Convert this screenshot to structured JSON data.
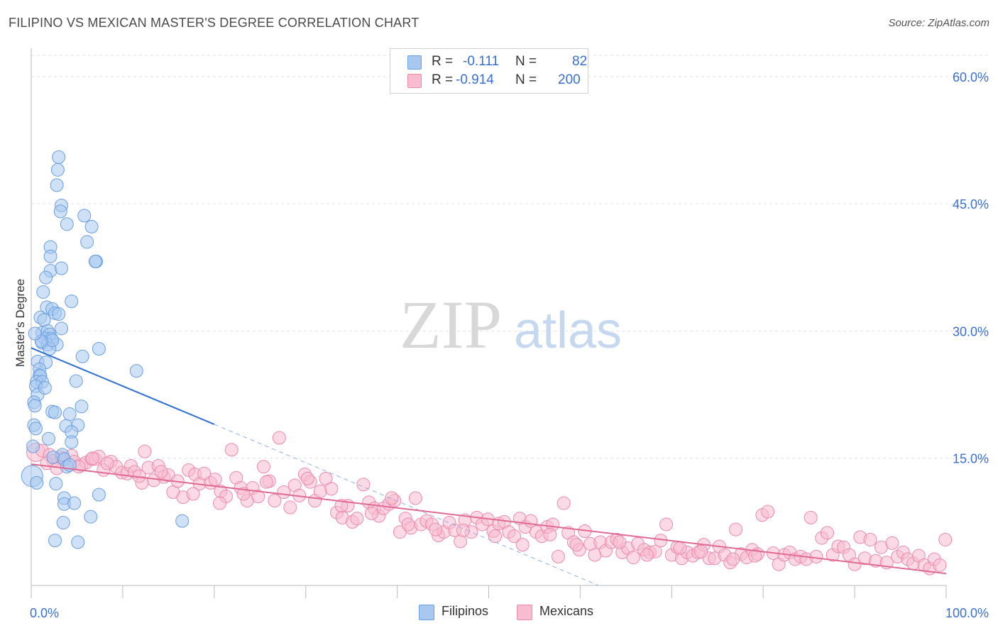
{
  "title": "FILIPINO VS MEXICAN MASTER'S DEGREE CORRELATION CHART",
  "source": "Source: ZipAtlas.com",
  "watermark": {
    "zip": "ZIP",
    "atlas": "atlas"
  },
  "legend": {
    "rows": [
      {
        "r_label": "R =",
        "r_value": "-0.111",
        "n_label": "N =",
        "n_value": "82",
        "color": "#a8c8f0",
        "stroke": "#6a9ee0"
      },
      {
        "r_label": "R =",
        "r_value": "-0.914",
        "n_label": "N =",
        "n_value": "200",
        "color": "#f8bcd0",
        "stroke": "#ec8aaa"
      }
    ]
  },
  "bottom_legend": [
    {
      "label": "Filipinos",
      "color": "#a8c8f0",
      "stroke": "#6a9ee0"
    },
    {
      "label": "Mexicans",
      "color": "#f8bcd0",
      "stroke": "#ec8aaa"
    }
  ],
  "chart_data": {
    "type": "scatter",
    "title": "FILIPINO VS MEXICAN MASTER'S DEGREE CORRELATION CHART",
    "xlabel": "",
    "ylabel": "Master's Degree",
    "xlim": [
      0,
      100
    ],
    "ylim": [
      0,
      63
    ],
    "x_tick_labels": [
      {
        "value": 0,
        "label": "0.0%"
      },
      {
        "value": 100,
        "label": "100.0%"
      }
    ],
    "y_tick_labels": [
      {
        "value": 15,
        "label": "15.0%"
      },
      {
        "value": 30,
        "label": "30.0%"
      },
      {
        "value": 45,
        "label": "45.0%"
      },
      {
        "value": 60,
        "label": "60.0%"
      }
    ],
    "grid": "horizontal dashed",
    "legend_position": "top-center",
    "series": [
      {
        "name": "Filipinos",
        "color": "#a8c8f0",
        "stroke": "#6a9ee0",
        "trend": {
          "x0": 0,
          "y0": 28.0,
          "x1": 20,
          "y1": 19.0,
          "dash_to_x": 62,
          "dash_to_y": 0
        },
        "trend_color": "#2f6fd0",
        "points": [
          [
            3.0,
            50.5
          ],
          [
            2.9,
            49.0
          ],
          [
            2.8,
            47.2
          ],
          [
            3.3,
            44.8
          ],
          [
            3.2,
            44.1
          ],
          [
            5.8,
            43.6
          ],
          [
            3.9,
            42.6
          ],
          [
            6.6,
            42.3
          ],
          [
            6.1,
            40.5
          ],
          [
            2.1,
            39.9
          ],
          [
            2.1,
            38.8
          ],
          [
            7.1,
            38.2
          ],
          [
            7.0,
            38.2
          ],
          [
            2.1,
            37.1
          ],
          [
            3.3,
            37.4
          ],
          [
            1.6,
            36.3
          ],
          [
            1.3,
            34.6
          ],
          [
            4.4,
            33.5
          ],
          [
            1.7,
            32.8
          ],
          [
            2.3,
            32.6
          ],
          [
            2.6,
            32.1
          ],
          [
            3.0,
            32.0
          ],
          [
            1.0,
            31.6
          ],
          [
            1.4,
            31.3
          ],
          [
            3.3,
            30.3
          ],
          [
            1.2,
            29.8
          ],
          [
            1.8,
            30.0
          ],
          [
            2.0,
            29.6
          ],
          [
            1.5,
            29.1
          ],
          [
            2.2,
            29.1
          ],
          [
            1.2,
            28.6
          ],
          [
            1.8,
            28.4
          ],
          [
            2.8,
            28.4
          ],
          [
            7.4,
            27.9
          ],
          [
            2.0,
            27.9
          ],
          [
            5.6,
            27.0
          ],
          [
            0.7,
            26.4
          ],
          [
            1.6,
            26.3
          ],
          [
            0.9,
            25.5
          ],
          [
            11.5,
            25.3
          ],
          [
            0.9,
            24.8
          ],
          [
            1.0,
            24.7
          ],
          [
            0.6,
            24.0
          ],
          [
            1.2,
            24.0
          ],
          [
            4.9,
            24.1
          ],
          [
            0.5,
            23.5
          ],
          [
            0.7,
            22.5
          ],
          [
            0.3,
            21.6
          ],
          [
            0.4,
            21.2
          ],
          [
            5.5,
            21.1
          ],
          [
            2.3,
            20.5
          ],
          [
            2.6,
            20.4
          ],
          [
            4.2,
            20.2
          ],
          [
            0.3,
            18.9
          ],
          [
            3.8,
            18.8
          ],
          [
            5.1,
            18.9
          ],
          [
            0.5,
            18.5
          ],
          [
            4.4,
            18.1
          ],
          [
            1.9,
            17.3
          ],
          [
            0.2,
            16.4
          ],
          [
            4.4,
            16.9
          ],
          [
            3.4,
            15.4
          ],
          [
            2.4,
            15.1
          ],
          [
            3.6,
            14.9
          ],
          [
            3.9,
            14.0
          ],
          [
            0.1,
            12.9
          ],
          [
            2.7,
            12.0
          ],
          [
            7.4,
            10.7
          ],
          [
            3.6,
            10.3
          ],
          [
            3.6,
            9.6
          ],
          [
            4.7,
            9.7
          ],
          [
            6.5,
            8.1
          ],
          [
            3.5,
            7.4
          ],
          [
            16.5,
            7.6
          ],
          [
            2.6,
            5.3
          ],
          [
            5.1,
            5.1
          ],
          [
            0.6,
            12.1
          ],
          [
            2.3,
            28.9
          ],
          [
            1.1,
            28.8
          ],
          [
            0.4,
            29.7
          ],
          [
            1.5,
            23.3
          ],
          [
            4.2,
            14.2
          ]
        ]
      },
      {
        "name": "Mexicans",
        "color": "#f8bcd0",
        "stroke": "#ec8aaa",
        "trend": {
          "x0": 0,
          "y0": 14.3,
          "x1": 100,
          "y1": 1.4
        },
        "trend_color": "#e06a94",
        "points": [
          [
            0.5,
            15.7
          ],
          [
            1.2,
            15.9
          ],
          [
            2.0,
            15.4
          ],
          [
            2.4,
            14.7
          ],
          [
            3.3,
            15.1
          ],
          [
            3.5,
            14.8
          ],
          [
            4.4,
            15.3
          ],
          [
            4.7,
            14.6
          ],
          [
            5.5,
            14.2
          ],
          [
            6.0,
            14.5
          ],
          [
            6.6,
            14.9
          ],
          [
            7.0,
            14.9
          ],
          [
            7.4,
            15.2
          ],
          [
            7.9,
            13.6
          ],
          [
            8.7,
            14.6
          ],
          [
            9.3,
            14.0
          ],
          [
            9.9,
            13.3
          ],
          [
            10.5,
            13.2
          ],
          [
            10.9,
            14.1
          ],
          [
            11.3,
            13.4
          ],
          [
            12.1,
            12.1
          ],
          [
            12.4,
            15.8
          ],
          [
            12.8,
            13.9
          ],
          [
            13.4,
            12.4
          ],
          [
            13.9,
            14.1
          ],
          [
            14.5,
            12.8
          ],
          [
            15.0,
            13.0
          ],
          [
            15.5,
            11.0
          ],
          [
            16.0,
            12.3
          ],
          [
            16.6,
            10.4
          ],
          [
            17.2,
            13.6
          ],
          [
            17.9,
            13.1
          ],
          [
            18.4,
            12.0
          ],
          [
            18.9,
            13.2
          ],
          [
            19.6,
            12.1
          ],
          [
            20.1,
            12.5
          ],
          [
            20.7,
            11.1
          ],
          [
            21.3,
            10.5
          ],
          [
            21.9,
            16.0
          ],
          [
            22.4,
            12.7
          ],
          [
            22.9,
            11.5
          ],
          [
            23.6,
            10.0
          ],
          [
            24.2,
            11.5
          ],
          [
            24.8,
            10.5
          ],
          [
            25.4,
            14.0
          ],
          [
            26.0,
            12.3
          ],
          [
            26.6,
            10.0
          ],
          [
            27.1,
            17.4
          ],
          [
            27.6,
            11.0
          ],
          [
            28.3,
            9.2
          ],
          [
            28.8,
            11.8
          ],
          [
            29.3,
            10.6
          ],
          [
            29.9,
            13.1
          ],
          [
            30.5,
            12.2
          ],
          [
            31.0,
            10.0
          ],
          [
            31.6,
            11.1
          ],
          [
            32.2,
            12.6
          ],
          [
            32.8,
            11.4
          ],
          [
            33.4,
            8.6
          ],
          [
            34.0,
            8.0
          ],
          [
            34.6,
            9.4
          ],
          [
            35.1,
            7.5
          ],
          [
            35.6,
            7.9
          ],
          [
            36.3,
            11.9
          ],
          [
            36.9,
            9.8
          ],
          [
            37.5,
            9.1
          ],
          [
            38.0,
            8.2
          ],
          [
            38.5,
            9.1
          ],
          [
            39.1,
            9.6
          ],
          [
            39.7,
            10.0
          ],
          [
            40.3,
            6.3
          ],
          [
            40.9,
            7.9
          ],
          [
            41.5,
            6.8
          ],
          [
            42.0,
            10.3
          ],
          [
            42.6,
            7.2
          ],
          [
            43.2,
            7.6
          ],
          [
            43.8,
            7.2
          ],
          [
            44.5,
            5.9
          ],
          [
            45.1,
            6.3
          ],
          [
            45.7,
            7.4
          ],
          [
            46.3,
            6.5
          ],
          [
            46.9,
            5.2
          ],
          [
            47.4,
            7.7
          ],
          [
            48.1,
            6.3
          ],
          [
            48.7,
            8.0
          ],
          [
            49.3,
            7.2
          ],
          [
            49.9,
            7.8
          ],
          [
            50.5,
            6.4
          ],
          [
            51.1,
            7.3
          ],
          [
            51.7,
            7.5
          ],
          [
            52.2,
            6.3
          ],
          [
            52.8,
            5.8
          ],
          [
            53.4,
            7.9
          ],
          [
            54.0,
            6.9
          ],
          [
            54.6,
            7.6
          ],
          [
            55.2,
            6.3
          ],
          [
            55.8,
            5.8
          ],
          [
            56.4,
            6.9
          ],
          [
            57.0,
            7.2
          ],
          [
            57.6,
            3.4
          ],
          [
            58.2,
            9.7
          ],
          [
            58.7,
            6.2
          ],
          [
            59.3,
            5.1
          ],
          [
            59.9,
            4.2
          ],
          [
            60.5,
            6.4
          ],
          [
            61.1,
            4.9
          ],
          [
            61.6,
            3.6
          ],
          [
            62.2,
            5.1
          ],
          [
            62.8,
            4.1
          ],
          [
            63.4,
            5.1
          ],
          [
            64.0,
            5.4
          ],
          [
            64.6,
            3.9
          ],
          [
            65.2,
            4.4
          ],
          [
            65.8,
            3.3
          ],
          [
            66.3,
            4.9
          ],
          [
            67.0,
            4.2
          ],
          [
            67.6,
            3.9
          ],
          [
            68.2,
            4.0
          ],
          [
            68.8,
            5.3
          ],
          [
            69.4,
            7.2
          ],
          [
            70.0,
            3.6
          ],
          [
            70.6,
            4.5
          ],
          [
            71.1,
            3.2
          ],
          [
            71.7,
            3.9
          ],
          [
            72.3,
            3.5
          ],
          [
            72.9,
            3.9
          ],
          [
            73.5,
            4.8
          ],
          [
            74.1,
            3.2
          ],
          [
            74.7,
            3.2
          ],
          [
            75.2,
            4.6
          ],
          [
            75.8,
            3.6
          ],
          [
            76.4,
            2.7
          ],
          [
            77.0,
            6.6
          ],
          [
            77.6,
            3.7
          ],
          [
            78.2,
            3.3
          ],
          [
            78.8,
            4.2
          ],
          [
            79.4,
            3.7
          ],
          [
            79.9,
            8.3
          ],
          [
            80.5,
            8.7
          ],
          [
            81.1,
            3.8
          ],
          [
            81.7,
            2.5
          ],
          [
            82.3,
            3.6
          ],
          [
            82.9,
            3.9
          ],
          [
            83.5,
            3.1
          ],
          [
            84.1,
            3.4
          ],
          [
            84.7,
            3.1
          ],
          [
            85.2,
            8.0
          ],
          [
            85.8,
            3.4
          ],
          [
            86.4,
            5.6
          ],
          [
            87.0,
            6.2
          ],
          [
            87.6,
            3.6
          ],
          [
            88.2,
            4.6
          ],
          [
            88.8,
            4.5
          ],
          [
            89.4,
            3.6
          ],
          [
            90.0,
            2.5
          ],
          [
            90.6,
            5.7
          ],
          [
            91.1,
            3.2
          ],
          [
            91.7,
            5.4
          ],
          [
            92.3,
            2.9
          ],
          [
            92.9,
            4.5
          ],
          [
            93.5,
            2.7
          ],
          [
            94.1,
            5.0
          ],
          [
            94.7,
            3.4
          ],
          [
            95.3,
            3.9
          ],
          [
            95.8,
            3.1
          ],
          [
            96.4,
            2.6
          ],
          [
            97.0,
            3.5
          ],
          [
            97.6,
            2.4
          ],
          [
            98.2,
            2.0
          ],
          [
            98.7,
            3.1
          ],
          [
            99.3,
            2.4
          ],
          [
            99.9,
            5.4
          ],
          [
            1.7,
            14.4
          ],
          [
            2.8,
            13.8
          ],
          [
            5.2,
            14.0
          ],
          [
            6.7,
            15.0
          ],
          [
            8.3,
            14.4
          ],
          [
            11.8,
            12.9
          ],
          [
            14.2,
            13.4
          ],
          [
            17.7,
            10.8
          ],
          [
            20.6,
            9.7
          ],
          [
            23.2,
            10.8
          ],
          [
            25.7,
            12.2
          ],
          [
            30.2,
            12.6
          ],
          [
            33.9,
            9.4
          ],
          [
            37.2,
            8.5
          ],
          [
            39.4,
            10.3
          ],
          [
            41.2,
            7.2
          ],
          [
            44.2,
            6.6
          ],
          [
            47.2,
            6.5
          ],
          [
            50.7,
            5.8
          ],
          [
            53.7,
            4.8
          ],
          [
            56.7,
            6.0
          ],
          [
            59.6,
            4.8
          ],
          [
            64.3,
            5.1
          ],
          [
            67.3,
            3.6
          ],
          [
            70.9,
            4.4
          ],
          [
            73.2,
            4.0
          ],
          [
            76.7,
            3.1
          ],
          [
            79.1,
            3.5
          ]
        ]
      }
    ]
  }
}
